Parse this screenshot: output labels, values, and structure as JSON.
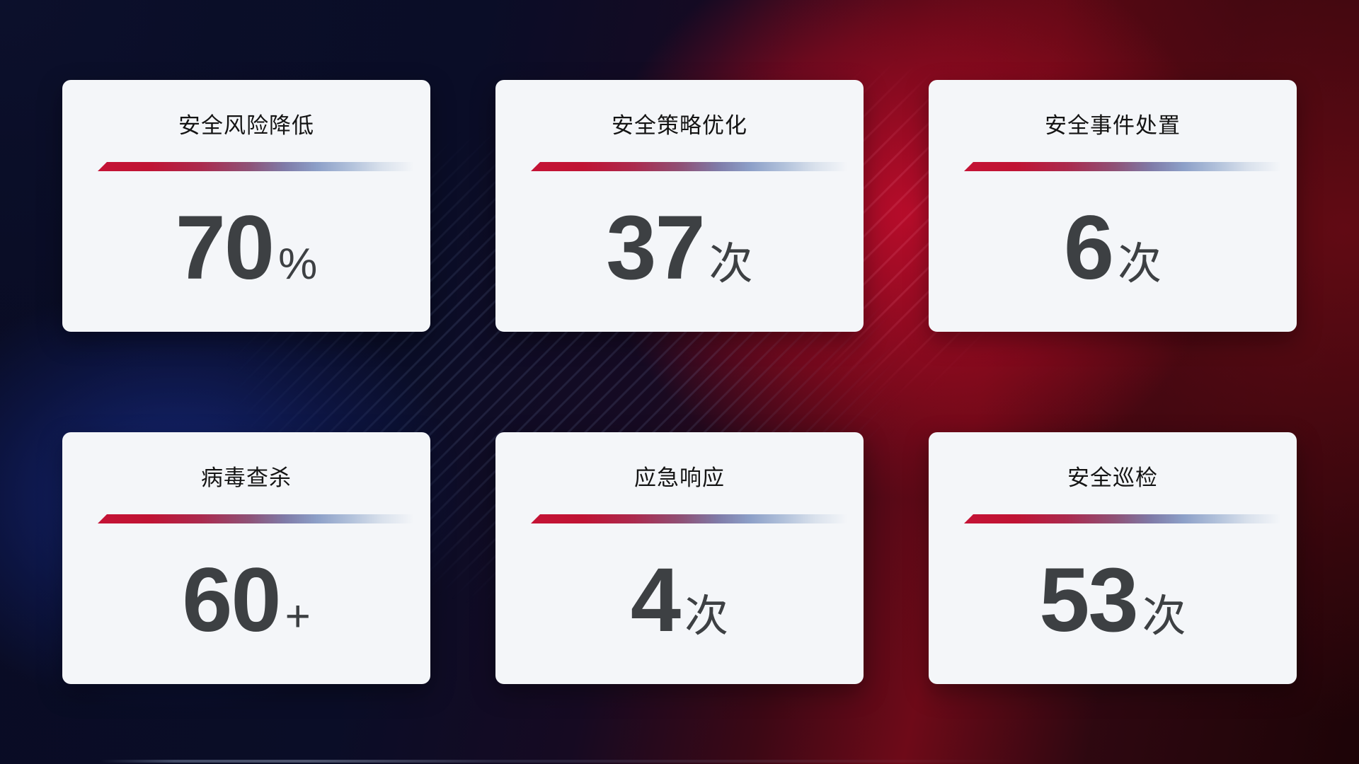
{
  "stats": {
    "cards": [
      {
        "title": "安全风险降低",
        "value": "70",
        "unit": "%"
      },
      {
        "title": "安全策略优化",
        "value": "37",
        "unit": "次"
      },
      {
        "title": "安全事件处置",
        "value": "6",
        "unit": "次"
      },
      {
        "title": "病毒查杀",
        "value": "60",
        "unit": "+"
      },
      {
        "title": "应急响应",
        "value": "4",
        "unit": "次"
      },
      {
        "title": "安全巡检",
        "value": "53",
        "unit": "次"
      }
    ]
  },
  "colors": {
    "divider_red": "#c41335",
    "divider_blue": "#8da0c8",
    "card_background": "#f4f6f9",
    "title_text": "#141414",
    "value_text": "#3d4043",
    "bg_navy": "#0a0e28",
    "bg_crimson": "#b80f2e",
    "bg_blue": "#162a80",
    "bg_maroon": "#200409"
  }
}
